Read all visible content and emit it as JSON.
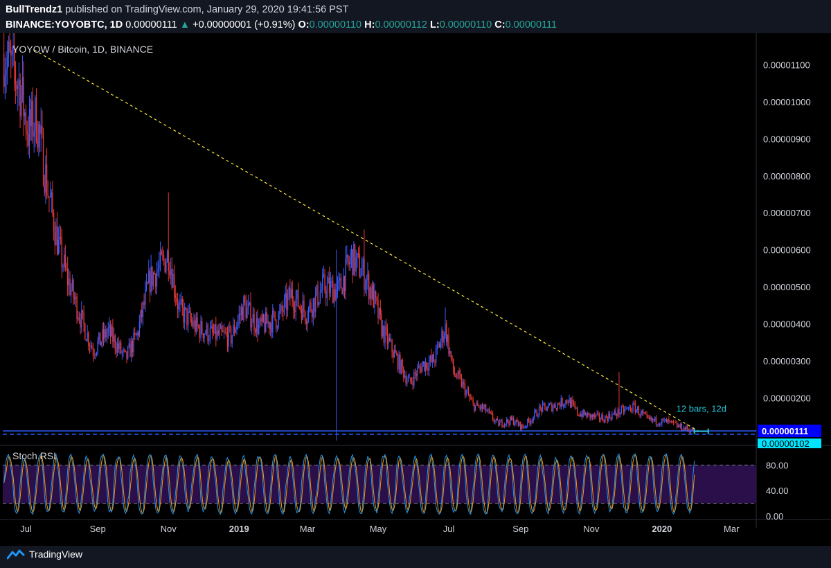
{
  "header": {
    "author": "BullTrendz1",
    "published_text": " published on TradingView.com, January 29, 2020 19:41:56 PST",
    "symbol": "BINANCE:YOYOBTC, 1D",
    "last": "0.00000111",
    "change_arrow": "▲",
    "change": "+0.00000001 (+0.91%)",
    "o_label": "O:",
    "o_val": "0.00000110",
    "h_label": "H:",
    "h_val": "0.00000112",
    "l_label": "L:",
    "l_val": "0.00000110",
    "c_label": "C:",
    "c_val": "0.00000111"
  },
  "footer": {
    "brand": "TradingView",
    "icon": "tradingview-logo-icon"
  },
  "colors": {
    "background": "#000000",
    "up": "#3d5afe",
    "down": "#e53935",
    "trendline": "#ffeb3b",
    "support": "#2962ff",
    "rsi_k": "#2196f3",
    "rsi_d": "#ff9800",
    "rsi_band": "#2a0f4a",
    "axis_text": "#d1d4dc",
    "price_label_bg": "#0000ff",
    "measure": "#26c6da",
    "teal_label_bg": "#00e5ff"
  },
  "chart_data": [
    {
      "type": "candlestick",
      "title": "YOYOW / Bitcoin, 1D, BINANCE",
      "x_ticks": [
        "Jul",
        "Sep",
        "Nov",
        "2019",
        "Mar",
        "May",
        "Jul",
        "Sep",
        "Nov",
        "2020",
        "Mar"
      ],
      "y_ticks": [
        "0.00001100",
        "0.00001000",
        "0.00000900",
        "0.00000800",
        "0.00000700",
        "0.00000600",
        "0.00000500",
        "0.00000400",
        "0.00000300",
        "0.00000200"
      ],
      "ylim": [
        8.5e-07,
        1.17e-05
      ],
      "xlim": [
        "2018-06-11",
        "2020-03-20"
      ],
      "close_anchors": [
        [
          "2018-06-12",
          1.13e-05
        ],
        [
          "2018-06-25",
          1.05e-05
        ],
        [
          "2018-07-03",
          9.2e-06
        ],
        [
          "2018-07-10",
          9.6e-06
        ],
        [
          "2018-07-20",
          7.6e-06
        ],
        [
          "2018-07-29",
          6.1e-06
        ],
        [
          "2018-08-05",
          5.3e-06
        ],
        [
          "2018-08-18",
          4.1e-06
        ],
        [
          "2018-08-28",
          3.3e-06
        ],
        [
          "2018-09-10",
          3.8e-06
        ],
        [
          "2018-09-25",
          3.05e-06
        ],
        [
          "2018-10-05",
          3.7e-06
        ],
        [
          "2018-10-16",
          5.2e-06
        ],
        [
          "2018-10-26",
          5.6e-06
        ],
        [
          "2018-11-01",
          5.9e-06
        ],
        [
          "2018-11-10",
          4.4e-06
        ],
        [
          "2018-11-25",
          3.9e-06
        ],
        [
          "2018-12-10",
          3.7e-06
        ],
        [
          "2018-12-25",
          3.65e-06
        ],
        [
          "2019-01-05",
          4.5e-06
        ],
        [
          "2019-01-18",
          3.9e-06
        ],
        [
          "2019-02-05",
          4.2e-06
        ],
        [
          "2019-02-15",
          4.8e-06
        ],
        [
          "2019-02-28",
          4.3e-06
        ],
        [
          "2019-03-15",
          5e-06
        ],
        [
          "2019-03-28",
          4.9e-06
        ],
        [
          "2019-04-08",
          5.8e-06
        ],
        [
          "2019-04-18",
          5.4e-06
        ],
        [
          "2019-04-26",
          4.8e-06
        ],
        [
          "2019-05-05",
          3.8e-06
        ],
        [
          "2019-05-18",
          3e-06
        ],
        [
          "2019-05-28",
          2.4e-06
        ],
        [
          "2019-06-08",
          2.9e-06
        ],
        [
          "2019-06-18",
          3e-06
        ],
        [
          "2019-06-28",
          3.9e-06
        ],
        [
          "2019-07-05",
          2.7e-06
        ],
        [
          "2019-07-12",
          2.4e-06
        ],
        [
          "2019-07-22",
          1.8e-06
        ],
        [
          "2019-08-01",
          1.7e-06
        ],
        [
          "2019-08-12",
          1.3e-06
        ],
        [
          "2019-08-25",
          1.4e-06
        ],
        [
          "2019-09-03",
          1.2e-06
        ],
        [
          "2019-09-18",
          1.7e-06
        ],
        [
          "2019-10-01",
          1.8e-06
        ],
        [
          "2019-10-12",
          1.95e-06
        ],
        [
          "2019-10-20",
          1.6e-06
        ],
        [
          "2019-11-01",
          1.5e-06
        ],
        [
          "2019-11-12",
          1.45e-06
        ],
        [
          "2019-11-28",
          1.65e-06
        ],
        [
          "2019-12-08",
          1.75e-06
        ],
        [
          "2019-12-20",
          1.4e-06
        ],
        [
          "2020-01-05",
          1.35e-06
        ],
        [
          "2020-01-18",
          1.2e-06
        ],
        [
          "2020-01-29",
          1.11e-06
        ]
      ],
      "spike_highs": [
        [
          "2018-06-28",
          1.125e-05
        ],
        [
          "2018-11-01",
          7.55e-06
        ],
        [
          "2019-03-26",
          6e-06
        ],
        [
          "2019-04-19",
          6.55e-06
        ],
        [
          "2019-06-28",
          4.45e-06
        ],
        [
          "2019-11-25",
          2.7e-06
        ]
      ],
      "spike_lows": [
        [
          "2019-03-26",
          8.5e-07
        ]
      ],
      "trendline": [
        [
          "2018-07-08",
          1.14e-05
        ],
        [
          "2020-02-03",
          1.08e-06
        ]
      ],
      "horizontal_levels": [
        {
          "value": 1.11e-06,
          "style": "solid",
          "label": "0.00000111"
        },
        {
          "value": 1.02e-06,
          "style": "dashed",
          "label": "0.00000102"
        }
      ],
      "measure": {
        "label": "12 bars, 12d",
        "from": "2020-01-29",
        "to": "2020-02-10",
        "value": 1.1e-06
      }
    },
    {
      "type": "line",
      "title": "Stoch RSI",
      "y_ticks": [
        "80.00",
        "40.00",
        "0.00"
      ],
      "ylim": [
        0,
        100
      ],
      "band": [
        20,
        80
      ],
      "series": [
        {
          "key": "k",
          "color": "#2196f3"
        },
        {
          "key": "d",
          "color": "#ff9800"
        }
      ]
    }
  ]
}
